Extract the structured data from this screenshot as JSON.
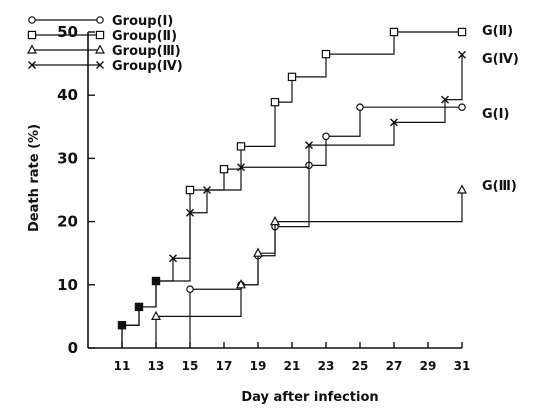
{
  "chart_data": {
    "type": "line",
    "step": true,
    "xlabel": "Day after infection",
    "ylabel": "Death rate (%)",
    "x_ticks": [
      11,
      13,
      15,
      17,
      19,
      21,
      23,
      25,
      27,
      29,
      31
    ],
    "y_ticks": [
      0,
      10,
      20,
      30,
      40,
      50
    ],
    "xlim": [
      9,
      31
    ],
    "ylim": [
      0,
      50
    ],
    "grid": false,
    "legend_position": "top-left",
    "series": [
      {
        "name": "Group(Ⅰ)",
        "end_label": "G(Ⅰ)",
        "marker": "circle",
        "points": [
          [
            15,
            9.3
          ],
          [
            18,
            10
          ],
          [
            19,
            14.6
          ],
          [
            20,
            19.2
          ],
          [
            22,
            28.9
          ],
          [
            23,
            33.5
          ],
          [
            25,
            38.1
          ],
          [
            31,
            38.1
          ]
        ]
      },
      {
        "name": "Group(Ⅱ)",
        "end_label": "G(Ⅱ)",
        "marker": "square",
        "points": [
          [
            11,
            3.6
          ],
          [
            12,
            6.5
          ],
          [
            13,
            10.6
          ],
          [
            15,
            25
          ],
          [
            17,
            28.3
          ],
          [
            18,
            31.9
          ],
          [
            20,
            38.9
          ],
          [
            21,
            42.9
          ],
          [
            23,
            46.5
          ],
          [
            27,
            50
          ],
          [
            31,
            50
          ]
        ]
      },
      {
        "name": "Group(Ⅲ)",
        "end_label": "G(Ⅲ)",
        "marker": "triangle",
        "points": [
          [
            13,
            5
          ],
          [
            18,
            10
          ],
          [
            19,
            15
          ],
          [
            20,
            20
          ],
          [
            31,
            25
          ]
        ]
      },
      {
        "name": "Group(Ⅳ)",
        "end_label": "G(Ⅳ)",
        "marker": "cross",
        "points": [
          [
            11,
            3.6
          ],
          [
            12,
            6.5
          ],
          [
            13,
            10.6
          ],
          [
            14,
            14.2
          ],
          [
            15,
            21.4
          ],
          [
            16,
            25
          ],
          [
            18,
            28.6
          ],
          [
            22,
            32.1
          ],
          [
            27,
            35.7
          ],
          [
            30,
            39.3
          ],
          [
            31,
            46.4
          ]
        ]
      }
    ]
  }
}
